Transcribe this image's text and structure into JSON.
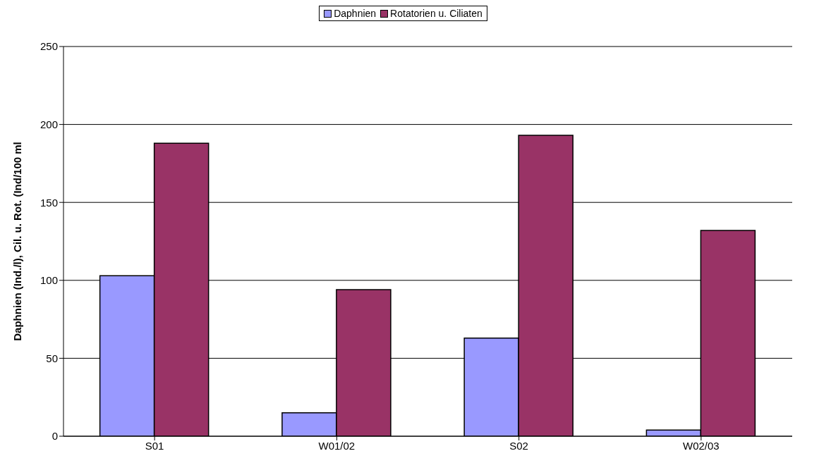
{
  "chart_data": {
    "type": "bar",
    "ylabel": "Daphnien (Ind./l), Cil. u. Rot. (Ind/100 ml",
    "categories": [
      "S01",
      "W01/02",
      "S02",
      "W02/03"
    ],
    "series": [
      {
        "name": "Daphnien",
        "color": "#9999ff",
        "values": [
          103,
          15,
          63,
          4
        ]
      },
      {
        "name": "Rotatorien u. Ciliaten",
        "color": "#993366",
        "values": [
          188,
          94,
          193,
          132
        ]
      }
    ],
    "ylim": [
      0,
      250
    ],
    "yticks": [
      0,
      50,
      100,
      150,
      200,
      250
    ],
    "grid": "y",
    "legend": "top"
  }
}
